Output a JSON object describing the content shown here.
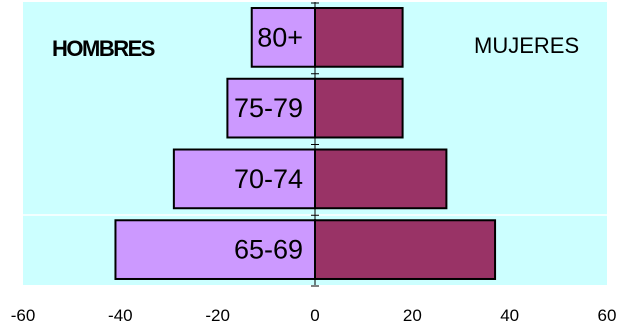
{
  "chart_data": {
    "type": "bar",
    "orientation": "horizontal",
    "categories": [
      "80+",
      "75-79",
      "70-74",
      "65-69"
    ],
    "series": [
      {
        "values": [
          -13,
          -18,
          -29,
          -41
        ]
      },
      {
        "values": [
          18,
          18,
          27,
          37
        ]
      }
    ],
    "side_labels": {
      "left": "HOMBRES",
      "right": "MUJERES"
    },
    "xlim": [
      -60,
      60
    ],
    "xticks": [
      -60,
      -40,
      -20,
      0,
      20,
      40,
      60
    ],
    "grid": false,
    "colors": {
      "plot_background": "#ccffff",
      "left_bar": "#cc99ff",
      "right_bar": "#993366",
      "bar_edge": "#000000"
    }
  }
}
